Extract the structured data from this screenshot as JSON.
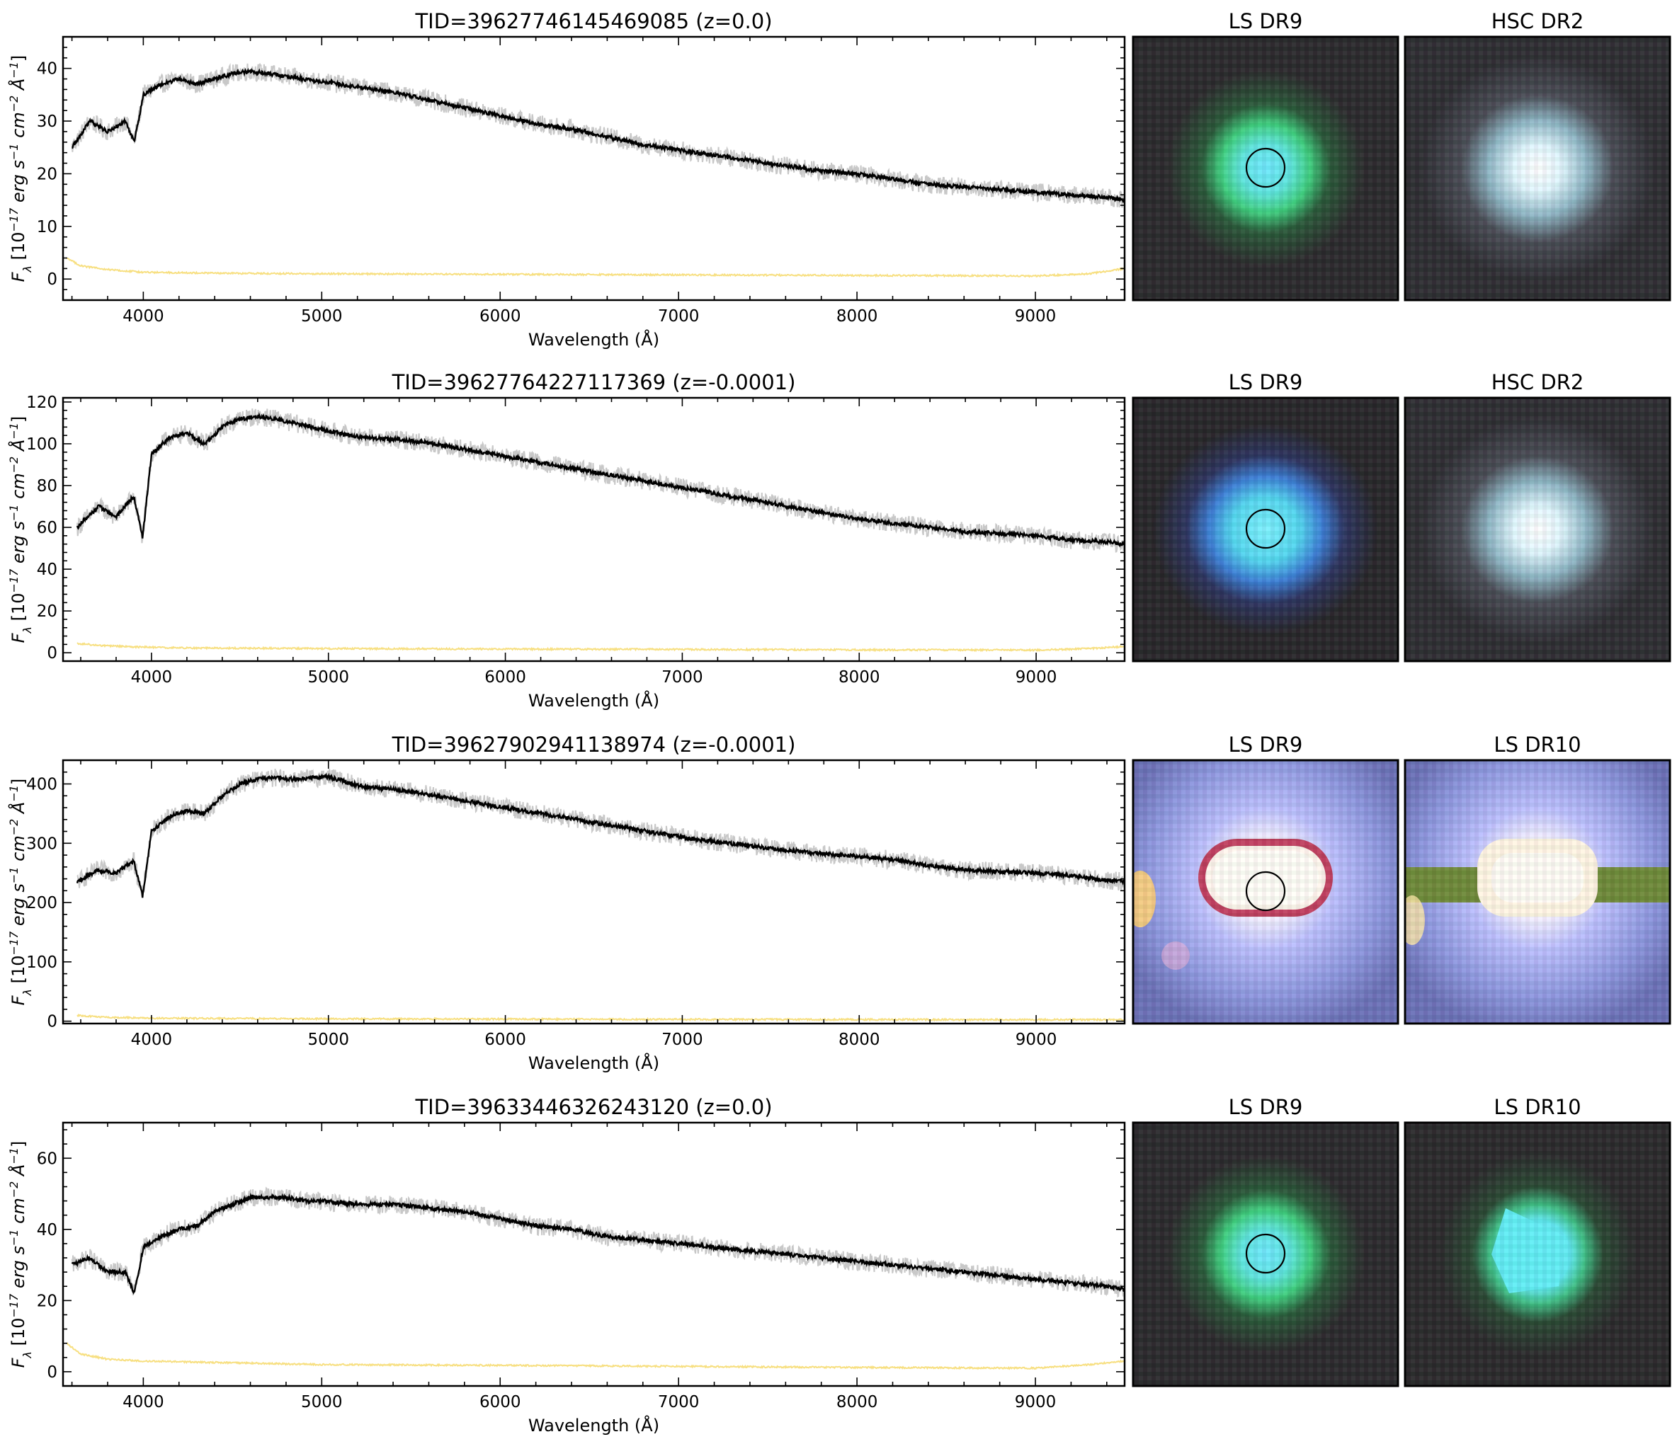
{
  "chart_data": [
    {
      "type": "line",
      "title": "TID=39627746145469085 (z=0.0)",
      "xlabel": "Wavelength (Å)",
      "ylabel_parts": [
        "F",
        "λ",
        " [10",
        "−17",
        " erg s",
        "−1",
        " cm",
        "−2",
        " Å",
        "−1",
        "]"
      ],
      "xlim": [
        3550,
        9500
      ],
      "ylim": [
        -4,
        46
      ],
      "xticks": [
        4000,
        5000,
        6000,
        7000,
        8000,
        9000
      ],
      "yticks": [
        0,
        10,
        20,
        30,
        40
      ],
      "series": [
        {
          "role": "flux",
          "color": "#c8c8c8",
          "x": [
            3600,
            3700,
            3800,
            3900,
            3950,
            4000,
            4100,
            4200,
            4300,
            4400,
            4500,
            4600,
            4700,
            4800,
            4900,
            5000,
            5200,
            5400,
            5600,
            5800,
            6000,
            6200,
            6400,
            6600,
            6800,
            7000,
            7200,
            7400,
            7600,
            7800,
            8000,
            8200,
            8400,
            8600,
            8800,
            9000,
            9200,
            9400,
            9500
          ],
          "y": [
            25,
            30,
            28,
            30,
            26,
            35,
            37,
            38,
            37,
            38,
            39,
            39.5,
            39,
            38.5,
            38,
            37.5,
            36.5,
            35.5,
            34,
            32.5,
            31,
            29.5,
            28.5,
            27,
            25.5,
            24.5,
            23.5,
            22.5,
            21.5,
            20.5,
            20,
            19,
            18,
            17.5,
            17,
            16.5,
            16,
            15.5,
            15
          ]
        },
        {
          "role": "model",
          "color": "#000000",
          "x": [
            3600,
            3700,
            3800,
            3900,
            3950,
            4000,
            4100,
            4200,
            4300,
            4400,
            4500,
            4600,
            4700,
            4800,
            4900,
            5000,
            5200,
            5400,
            5600,
            5800,
            6000,
            6200,
            6400,
            6600,
            6800,
            7000,
            7200,
            7400,
            7600,
            7800,
            8000,
            8200,
            8400,
            8600,
            8800,
            9000,
            9200,
            9400,
            9500
          ],
          "y": [
            25,
            30,
            28,
            30,
            26,
            35,
            37,
            38,
            37,
            38,
            39,
            39.5,
            39,
            38.5,
            38,
            37.5,
            36.5,
            35.5,
            34,
            32.5,
            31,
            29.5,
            28.5,
            27,
            25.5,
            24.5,
            23.5,
            22.5,
            21.5,
            20.5,
            20,
            19,
            18,
            17.5,
            17,
            16.5,
            16,
            15.5,
            15
          ]
        },
        {
          "role": "ivar",
          "color": "#f7df80",
          "x": [
            3570,
            3650,
            3800,
            4000,
            4500,
            5000,
            6000,
            7000,
            8000,
            9000,
            9300,
            9500
          ],
          "y": [
            4,
            2.5,
            1.8,
            1.3,
            1.1,
            1,
            0.9,
            0.8,
            0.7,
            0.6,
            1,
            2
          ]
        }
      ],
      "images": [
        {
          "label": "LS DR9",
          "style": "green",
          "circle": true
        },
        {
          "label": "HSC DR2",
          "style": "white",
          "circle": false
        }
      ]
    },
    {
      "type": "line",
      "title": "TID=39627764227117369 (z=-0.0001)",
      "xlabel": "Wavelength (Å)",
      "ylabel_parts": [
        "F",
        "λ",
        " [10",
        "−17",
        " erg s",
        "−1",
        " cm",
        "−2",
        " Å",
        "−1",
        "]"
      ],
      "xlim": [
        3500,
        9500
      ],
      "ylim": [
        -4,
        122
      ],
      "xticks": [
        4000,
        5000,
        6000,
        7000,
        8000,
        9000
      ],
      "yticks": [
        0,
        20,
        40,
        60,
        80,
        100,
        120
      ],
      "series": [
        {
          "role": "flux",
          "color": "#c8c8c8",
          "x": [
            3580,
            3700,
            3800,
            3900,
            3950,
            4000,
            4100,
            4200,
            4300,
            4400,
            4500,
            4600,
            4700,
            4800,
            4900,
            5000,
            5200,
            5400,
            5600,
            5800,
            6000,
            6200,
            6400,
            6600,
            6800,
            7000,
            7200,
            7400,
            7600,
            7800,
            8000,
            8200,
            8400,
            8600,
            8800,
            9000,
            9200,
            9400,
            9500
          ],
          "y": [
            60,
            70,
            65,
            75,
            55,
            95,
            103,
            105,
            100,
            108,
            112,
            113,
            112,
            110,
            108,
            106,
            103,
            102,
            100,
            97,
            94,
            91,
            88,
            85,
            82,
            79,
            76,
            73,
            70,
            67,
            64,
            62,
            60,
            58,
            57,
            56,
            54,
            53,
            52
          ]
        },
        {
          "role": "model",
          "color": "#000000",
          "x": [
            3580,
            3700,
            3800,
            3900,
            3950,
            4000,
            4100,
            4200,
            4300,
            4400,
            4500,
            4600,
            4700,
            4800,
            4900,
            5000,
            5200,
            5400,
            5600,
            5800,
            6000,
            6200,
            6400,
            6600,
            6800,
            7000,
            7200,
            7400,
            7600,
            7800,
            8000,
            8200,
            8400,
            8600,
            8800,
            9000,
            9200,
            9400,
            9500
          ],
          "y": [
            60,
            70,
            65,
            75,
            55,
            95,
            103,
            105,
            100,
            108,
            112,
            113,
            112,
            110,
            108,
            106,
            103,
            102,
            100,
            97,
            94,
            91,
            88,
            85,
            82,
            79,
            76,
            73,
            70,
            67,
            64,
            62,
            60,
            58,
            57,
            56,
            54,
            53,
            52
          ]
        },
        {
          "role": "ivar",
          "color": "#f7df80",
          "x": [
            3580,
            3700,
            3900,
            4200,
            5000,
            6000,
            7000,
            8000,
            9000,
            9300,
            9500
          ],
          "y": [
            4.5,
            3.5,
            2.8,
            2.3,
            2,
            1.8,
            1.6,
            1.4,
            1.3,
            2,
            3
          ]
        }
      ],
      "images": [
        {
          "label": "LS DR9",
          "style": "blue",
          "circle": true
        },
        {
          "label": "HSC DR2",
          "style": "white",
          "circle": false
        }
      ]
    },
    {
      "type": "line",
      "title": "TID=39627902941138974 (z=-0.0001)",
      "xlabel": "Wavelength (Å)",
      "ylabel_parts": [
        "F",
        "λ",
        " [10",
        "−17",
        " erg s",
        "−1",
        " cm",
        "−2",
        " Å",
        "−1",
        "]"
      ],
      "xlim": [
        3500,
        9500
      ],
      "ylim": [
        -4,
        440
      ],
      "xticks": [
        4000,
        5000,
        6000,
        7000,
        8000,
        9000
      ],
      "yticks": [
        0,
        100,
        200,
        300,
        400
      ],
      "series": [
        {
          "role": "flux",
          "color": "#c8c8c8",
          "x": [
            3580,
            3700,
            3800,
            3900,
            3950,
            4000,
            4100,
            4200,
            4300,
            4400,
            4500,
            4600,
            4700,
            4800,
            4900,
            5000,
            5200,
            5400,
            5600,
            5800,
            6000,
            6200,
            6400,
            6600,
            6800,
            7000,
            7200,
            7400,
            7600,
            7800,
            8000,
            8200,
            8400,
            8600,
            8800,
            9000,
            9200,
            9400,
            9500
          ],
          "y": [
            235,
            255,
            250,
            270,
            210,
            320,
            345,
            355,
            350,
            380,
            400,
            408,
            410,
            408,
            410,
            412,
            395,
            390,
            380,
            370,
            360,
            350,
            340,
            330,
            320,
            310,
            302,
            295,
            288,
            282,
            278,
            272,
            262,
            255,
            252,
            250,
            245,
            238,
            235
          ]
        },
        {
          "role": "model",
          "color": "#000000",
          "x": [
            3580,
            3700,
            3800,
            3900,
            3950,
            4000,
            4100,
            4200,
            4300,
            4400,
            4500,
            4600,
            4700,
            4800,
            4900,
            5000,
            5200,
            5400,
            5600,
            5800,
            6000,
            6200,
            6400,
            6600,
            6800,
            7000,
            7200,
            7400,
            7600,
            7800,
            8000,
            8200,
            8400,
            8600,
            8800,
            9000,
            9200,
            9400,
            9500
          ],
          "y": [
            235,
            255,
            250,
            270,
            210,
            320,
            345,
            355,
            350,
            380,
            400,
            408,
            410,
            408,
            410,
            412,
            395,
            390,
            380,
            370,
            360,
            350,
            340,
            330,
            320,
            310,
            302,
            295,
            288,
            282,
            278,
            272,
            262,
            255,
            252,
            250,
            245,
            238,
            235
          ]
        },
        {
          "role": "ivar",
          "color": "#f7df80",
          "x": [
            3580,
            3700,
            4000,
            5000,
            6000,
            7000,
            8000,
            9000,
            9500
          ],
          "y": [
            10,
            7,
            5,
            4,
            3.5,
            3,
            2.8,
            2.5,
            2.5
          ]
        }
      ],
      "images": [
        {
          "label": "LS DR9",
          "style": "saturated",
          "circle": true
        },
        {
          "label": "LS DR10",
          "style": "saturated2",
          "circle": false
        }
      ]
    },
    {
      "type": "line",
      "title": "TID=39633446326243120 (z=0.0)",
      "xlabel": "Wavelength (Å)",
      "ylabel_parts": [
        "F",
        "λ",
        " [10",
        "−17",
        " erg s",
        "−1",
        " cm",
        "−2",
        " Å",
        "−1",
        "]"
      ],
      "xlim": [
        3550,
        9500
      ],
      "ylim": [
        -4,
        70
      ],
      "xticks": [
        4000,
        5000,
        6000,
        7000,
        8000,
        9000
      ],
      "yticks": [
        0,
        20,
        40,
        60
      ],
      "series": [
        {
          "role": "flux",
          "color": "#c8c8c8",
          "x": [
            3600,
            3700,
            3800,
            3900,
            3950,
            4000,
            4100,
            4200,
            4300,
            4400,
            4500,
            4600,
            4700,
            4800,
            4900,
            5000,
            5200,
            5400,
            5600,
            5800,
            6000,
            6200,
            6400,
            6600,
            6800,
            7000,
            7200,
            7400,
            7600,
            7800,
            8000,
            8200,
            8400,
            8600,
            8800,
            9000,
            9200,
            9400,
            9500
          ],
          "y": [
            30,
            32,
            28,
            28,
            22,
            35,
            38,
            40,
            41,
            45,
            47,
            49,
            49,
            49,
            48,
            48,
            47,
            47,
            46,
            45,
            43,
            41,
            40,
            38,
            37,
            36,
            35,
            34,
            33,
            32,
            31,
            30,
            29,
            28,
            27,
            26,
            25,
            24,
            23
          ]
        },
        {
          "role": "model",
          "color": "#000000",
          "x": [
            3600,
            3700,
            3800,
            3900,
            3950,
            4000,
            4100,
            4200,
            4300,
            4400,
            4500,
            4600,
            4700,
            4800,
            4900,
            5000,
            5200,
            5400,
            5600,
            5800,
            6000,
            6200,
            6400,
            6600,
            6800,
            7000,
            7200,
            7400,
            7600,
            7800,
            8000,
            8200,
            8400,
            8600,
            8800,
            9000,
            9200,
            9400,
            9500
          ],
          "y": [
            30,
            32,
            28,
            28,
            22,
            35,
            38,
            40,
            41,
            45,
            47,
            49,
            49,
            49,
            48,
            48,
            47,
            47,
            46,
            45,
            43,
            41,
            40,
            38,
            37,
            36,
            35,
            34,
            33,
            32,
            31,
            30,
            29,
            28,
            27,
            26,
            25,
            24,
            23
          ]
        },
        {
          "role": "ivar",
          "color": "#f7df80",
          "x": [
            3570,
            3650,
            3800,
            4000,
            4500,
            5000,
            6000,
            7000,
            8000,
            9000,
            9300,
            9500
          ],
          "y": [
            8,
            5,
            3.5,
            3,
            2.5,
            2,
            1.8,
            1.5,
            1.2,
            1,
            2,
            3
          ]
        }
      ],
      "images": [
        {
          "label": "LS DR9",
          "style": "green",
          "circle": true
        },
        {
          "label": "LS DR10",
          "style": "cyan",
          "circle": false
        }
      ]
    }
  ]
}
